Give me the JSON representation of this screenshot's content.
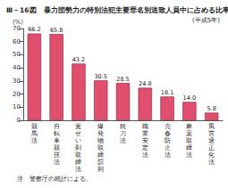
{
  "chart_data": {
    "type": "bar",
    "title": "Ⅲ－16図　暴力団勢力の特別法犯主要罪名別送致人員中に占める比率",
    "subtitle": "(平成5年)",
    "y_label": "(%)",
    "note": "注　警察庁の統計による。",
    "categories": [
      "競馬法",
      "自転車競技法",
      "覚せい剤取締法",
      "爆発物取締罰則",
      "銃刀法",
      "職業安定法",
      "売春防止法",
      "麻薬取締法",
      "風営適正化法"
    ],
    "values": [
      66.2,
      65.8,
      43.2,
      30.5,
      28.5,
      24.8,
      18.1,
      14.0,
      5.8
    ],
    "value_labels": [
      "66.2",
      "65.8",
      "43.2",
      "30.5",
      "28.5",
      "24.8",
      "18.1",
      "14.0",
      "5.8"
    ],
    "color": "#e0506e",
    "ylim": [
      0,
      70
    ],
    "yticks": [
      0,
      10,
      20,
      30,
      40,
      50,
      60,
      70
    ],
    "grid": false,
    "data_labels": true
  }
}
